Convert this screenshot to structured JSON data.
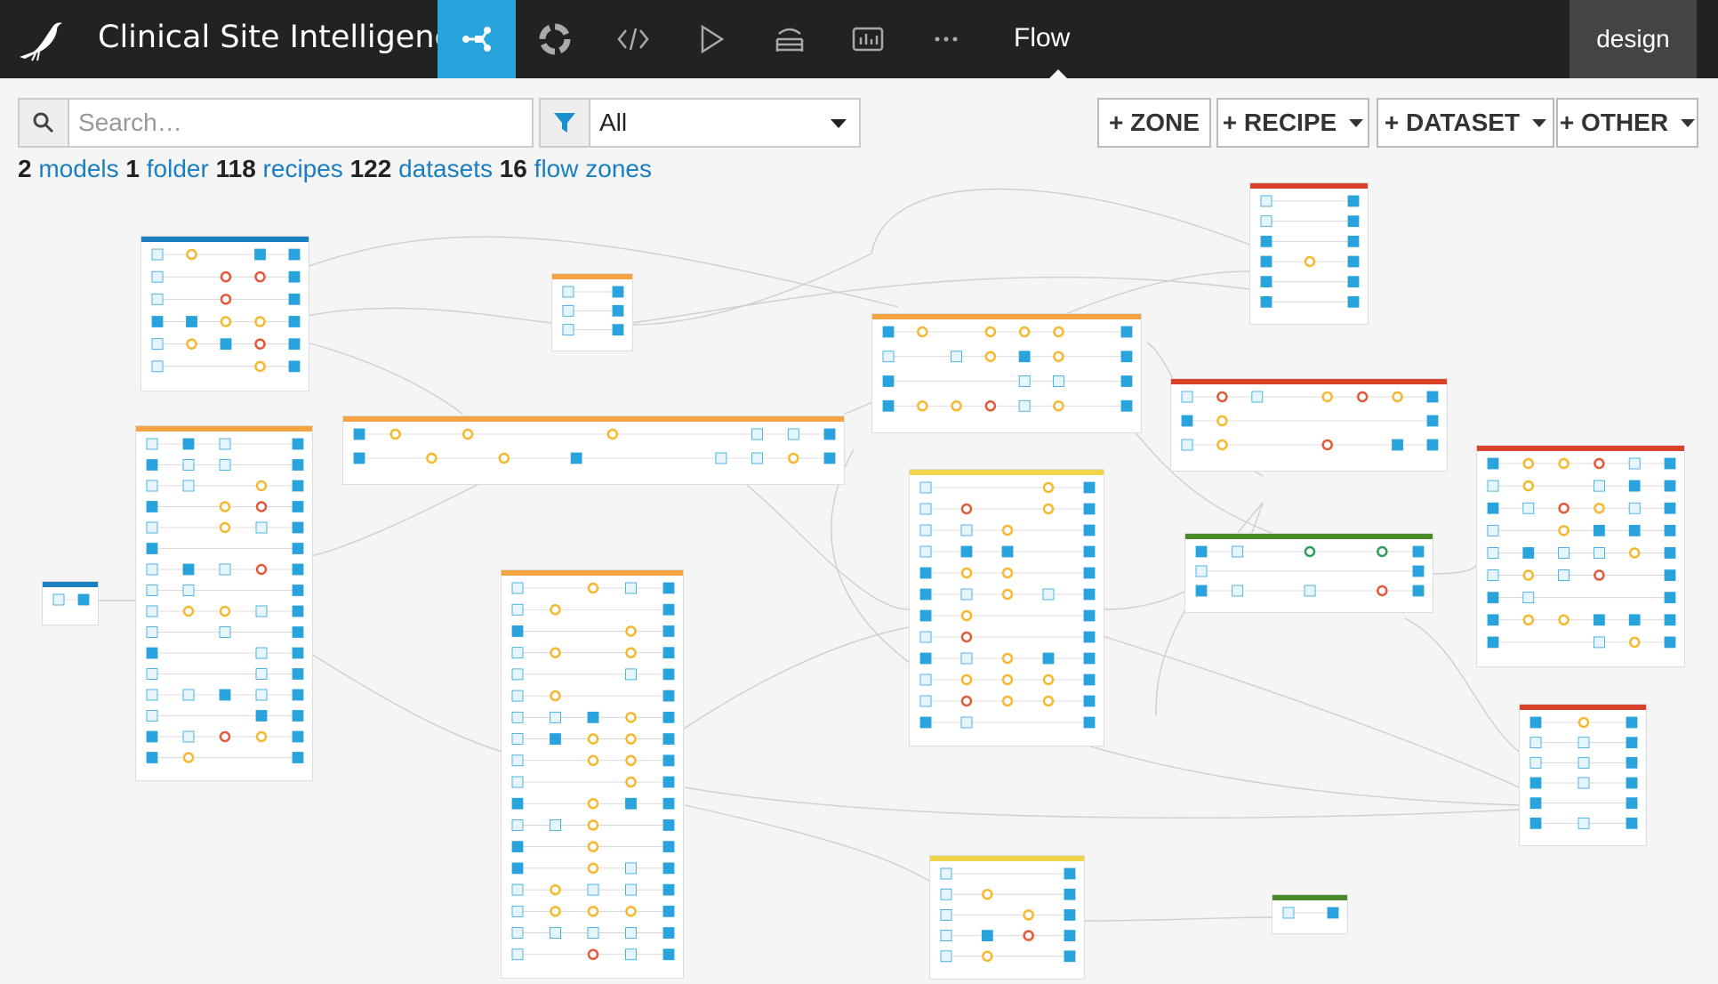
{
  "header": {
    "app_title": "Clinical Site Intelligence",
    "flow_label": "Flow",
    "design_label": "design",
    "nav": [
      {
        "name": "flow-nav-icon",
        "icon": "flow-icon",
        "active": true
      },
      {
        "name": "lifecycle-nav-icon",
        "icon": "ring-icon",
        "active": false
      },
      {
        "name": "code-nav-icon",
        "icon": "code-icon",
        "active": false
      },
      {
        "name": "run-nav-icon",
        "icon": "play-icon",
        "active": false
      },
      {
        "name": "deploy-nav-icon",
        "icon": "stack-icon",
        "active": false
      },
      {
        "name": "dashboard-nav-icon",
        "icon": "dashboard-icon",
        "active": false
      },
      {
        "name": "more-nav-icon",
        "icon": "more-icon",
        "active": false
      }
    ]
  },
  "toolbar": {
    "search_placeholder": "Search…",
    "filter_value": "All",
    "zone_label": "+ ZONE",
    "recipe_label": "+ RECIPE",
    "dataset_label": "+ DATASET",
    "other_label": "+ OTHER"
  },
  "stats": {
    "models_count": "2",
    "models_label": "models",
    "folder_count": "1",
    "folder_label": "folder",
    "recipes_count": "118",
    "recipes_label": "recipes",
    "datasets_count": "122",
    "datasets_label": "datasets",
    "zones_count": "16",
    "zones_label": "flow zones"
  },
  "colors": {
    "topbar": "#222222",
    "accent": "#29a3dc",
    "zone_blue": "#1a7fc0",
    "zone_orange": "#f4a340",
    "zone_yellow": "#f0d54a",
    "zone_red": "#d9412a",
    "zone_green": "#4a8a2a",
    "dataset_blue": "#29a3dc",
    "recipe_yellow": "#f5b82e",
    "recipe_red": "#e2593b"
  },
  "zones": [
    {
      "id": "z-external-datasets",
      "color": "zone_blue"
    },
    {
      "id": "z-query-frame",
      "color": "zone_blue"
    },
    {
      "id": "z-extract-tables",
      "color": "zone_orange"
    },
    {
      "id": "z-mesh-terms",
      "color": "zone_orange"
    },
    {
      "id": "z-clinical-site-harmonization",
      "color": "zone_orange"
    },
    {
      "id": "z-us-census",
      "color": "zone_orange"
    },
    {
      "id": "z-dataset-preparation",
      "color": "zone_orange"
    },
    {
      "id": "z-enrollment-feature-eng",
      "color": "zone_yellow"
    },
    {
      "id": "z-similarity-feature-eng",
      "color": "zone_yellow"
    },
    {
      "id": "z-clinical-insights",
      "color": "zone_red"
    },
    {
      "id": "z-sponsor-insights-sites",
      "color": "zone_red"
    },
    {
      "id": "z-sponsor-insights-studies",
      "color": "zone_red"
    },
    {
      "id": "z-study-similarity-preview",
      "color": "zone_red"
    },
    {
      "id": "z-enrollment-model",
      "color": "zone_green"
    },
    {
      "id": "z-study-similarity-index",
      "color": "zone_green"
    }
  ]
}
